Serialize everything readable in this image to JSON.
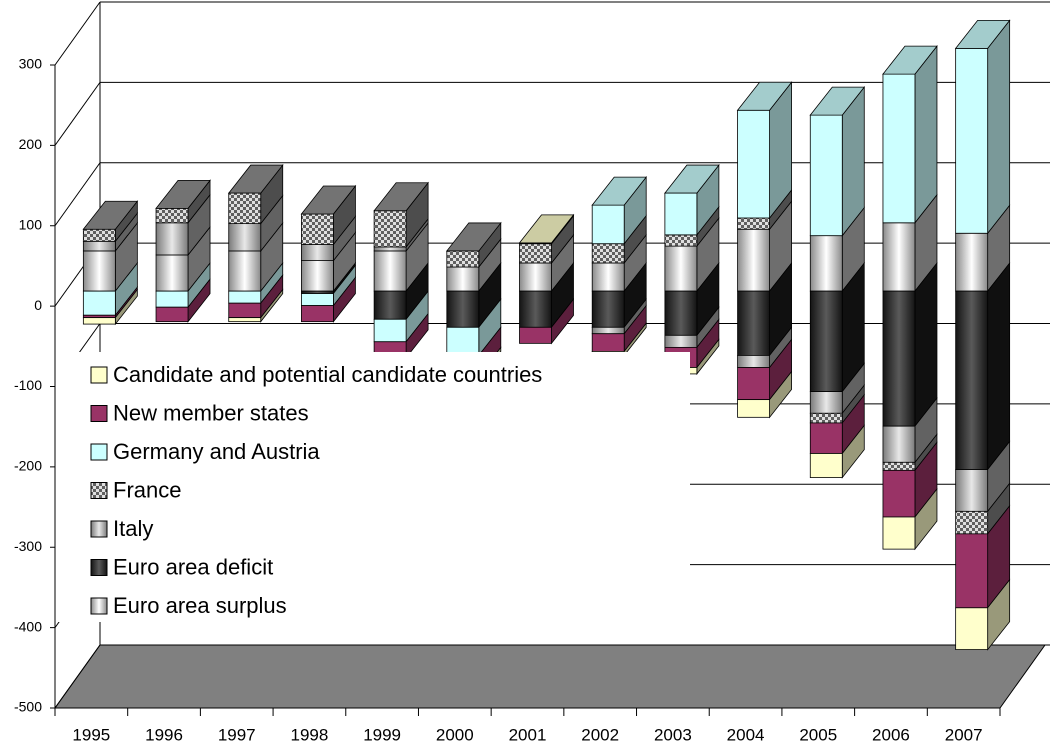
{
  "chart_data": {
    "type": "bar3d-stacked",
    "categories": [
      "1995",
      "1996",
      "1997",
      "1998",
      "1999",
      "2000",
      "2001",
      "2002",
      "2003",
      "2004",
      "2005",
      "2006",
      "2007"
    ],
    "series": [
      {
        "name": "Euro area surplus",
        "color": "#8a8a8a",
        "highlight": "#ffffff",
        "values": [
          50,
          45,
          50,
          38,
          50,
          30,
          35,
          35,
          56,
          77,
          69,
          85,
          72
        ]
      },
      {
        "name": "Euro area deficit",
        "color": "#141414",
        "highlight": "#5a5a5a",
        "values": [
          0,
          0,
          0,
          -3,
          -35,
          -45,
          -45,
          -45,
          -55,
          -80,
          -125,
          -168,
          -222
        ]
      },
      {
        "name": "Italy",
        "color": "#7a7a7a",
        "highlight": "#e8e8e8",
        "values": [
          12,
          40,
          34,
          20,
          5,
          0,
          0,
          -8,
          -15,
          -15,
          -27,
          -45,
          -52
        ]
      },
      {
        "name": "France",
        "color": "#606060",
        "highlight": "#e0e0e0",
        "pattern": true,
        "values": [
          15,
          18,
          38,
          38,
          45,
          20,
          24,
          24,
          14,
          14,
          -12,
          -10,
          -28
        ]
      },
      {
        "name": "Germany and Austria",
        "color": "#ccffff",
        "values": [
          -30,
          -20,
          -15,
          -15,
          -28,
          -35,
          0,
          48,
          52,
          134,
          150,
          185,
          230
        ]
      },
      {
        "name": "New member states",
        "color": "#993366",
        "values": [
          -3,
          -18,
          -18,
          -20,
          -20,
          -25,
          -20,
          -22,
          -25,
          -40,
          -38,
          -58,
          -92
        ]
      },
      {
        "name": "Candidate and potential candidate countries",
        "color": "#ffffcc",
        "values": [
          -8,
          0,
          -5,
          0,
          0,
          -5,
          1,
          -5,
          -8,
          -22,
          -30,
          -40,
          -52
        ]
      }
    ],
    "ylim": [
      -500,
      300
    ],
    "yticks": [
      -500,
      -400,
      -300,
      -200,
      -100,
      0,
      100,
      200,
      300
    ],
    "grid": true
  }
}
